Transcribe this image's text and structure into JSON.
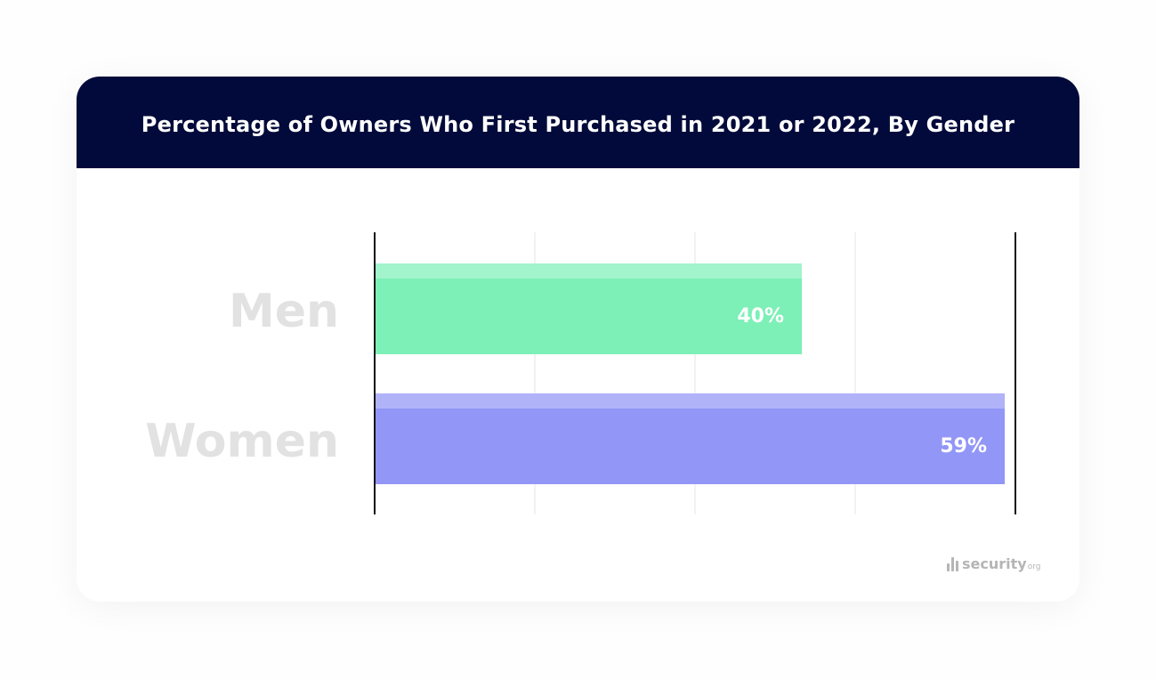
{
  "colors": {
    "header_bg": "#010a3a",
    "men_bar": "#7cf0b6",
    "men_bar_top": "#a2f4cc",
    "women_bar": "#9296f6",
    "women_bar_top": "#b0b3f8",
    "grid": "#e4e4e4",
    "axis": "#111111",
    "category_label": "#e2e2e2"
  },
  "logo": {
    "icon": "security-bars-icon",
    "text": "security",
    "suffix": "org"
  },
  "chart_data": {
    "type": "bar",
    "orientation": "horizontal",
    "title": "Percentage of Owners Who First Purchased in 2021 or 2022, By Gender",
    "categories": [
      "Men",
      "Women"
    ],
    "values": [
      40,
      59
    ],
    "value_labels": [
      "40%",
      "59%"
    ],
    "xlim": [
      0,
      60
    ],
    "grid": true,
    "legend": "none"
  }
}
